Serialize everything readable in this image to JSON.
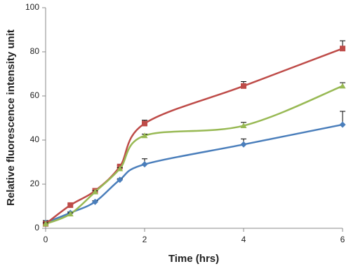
{
  "chart_data": {
    "type": "line",
    "x_label": "Time (hrs)",
    "y_label": "Relative fluorescence intensity unit",
    "x": [
      0,
      0.5,
      1,
      1.5,
      2,
      4,
      6
    ],
    "series": [
      {
        "color": "#4a7ebb",
        "marker": "diamond",
        "values": [
          2.5,
          7,
          12,
          22,
          29,
          38,
          47
        ],
        "errors": [
          1,
          0.5,
          0.5,
          0.5,
          2.5,
          2.5,
          6
        ]
      },
      {
        "color": "#be4b48",
        "marker": "square",
        "values": [
          2,
          10.5,
          17,
          28,
          47.5,
          64.5,
          81.5
        ],
        "errors": [
          1,
          0.5,
          0.5,
          0.5,
          1.5,
          2,
          3.5
        ]
      },
      {
        "color": "#98b954",
        "marker": "triangle",
        "values": [
          2,
          6.5,
          16.5,
          27,
          42,
          46.5,
          64.5
        ],
        "errors": [
          0.5,
          0.5,
          0.5,
          0.5,
          0.7,
          1.5,
          1.5
        ]
      }
    ],
    "xlim": [
      0,
      6
    ],
    "xticks": [
      0,
      2,
      4,
      6
    ],
    "ylim": [
      0,
      100
    ],
    "yticks": [
      0,
      20,
      40,
      60,
      80,
      100
    ],
    "smooth": true,
    "grid": false
  }
}
